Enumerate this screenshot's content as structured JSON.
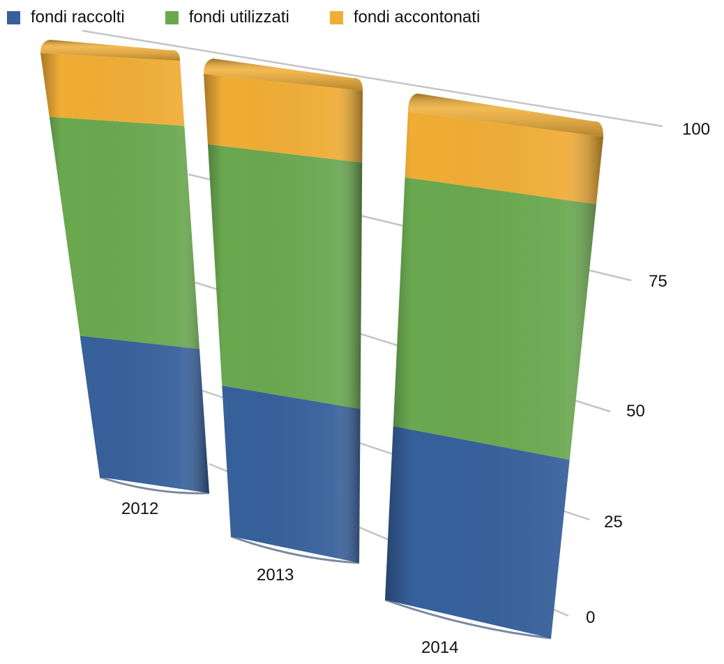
{
  "chart_data": {
    "type": "bar",
    "stacked": true,
    "style": "3d",
    "categories": [
      "2012",
      "2013",
      "2014"
    ],
    "series": [
      {
        "name": "fondi raccolti",
        "color": "#36609b",
        "values": [
          31,
          30,
          37
        ]
      },
      {
        "name": "fondi utilizzati",
        "color": "#6aa84f",
        "values": [
          48,
          48,
          53
        ]
      },
      {
        "name": "fondi accontonati",
        "color": "#f0ad35",
        "values": [
          14,
          14,
          14
        ]
      }
    ],
    "y_ticks": [
      "100",
      "75",
      "50",
      "25",
      "0"
    ],
    "ylim": [
      0,
      100
    ],
    "legend_position": "top-left",
    "grid": true
  }
}
